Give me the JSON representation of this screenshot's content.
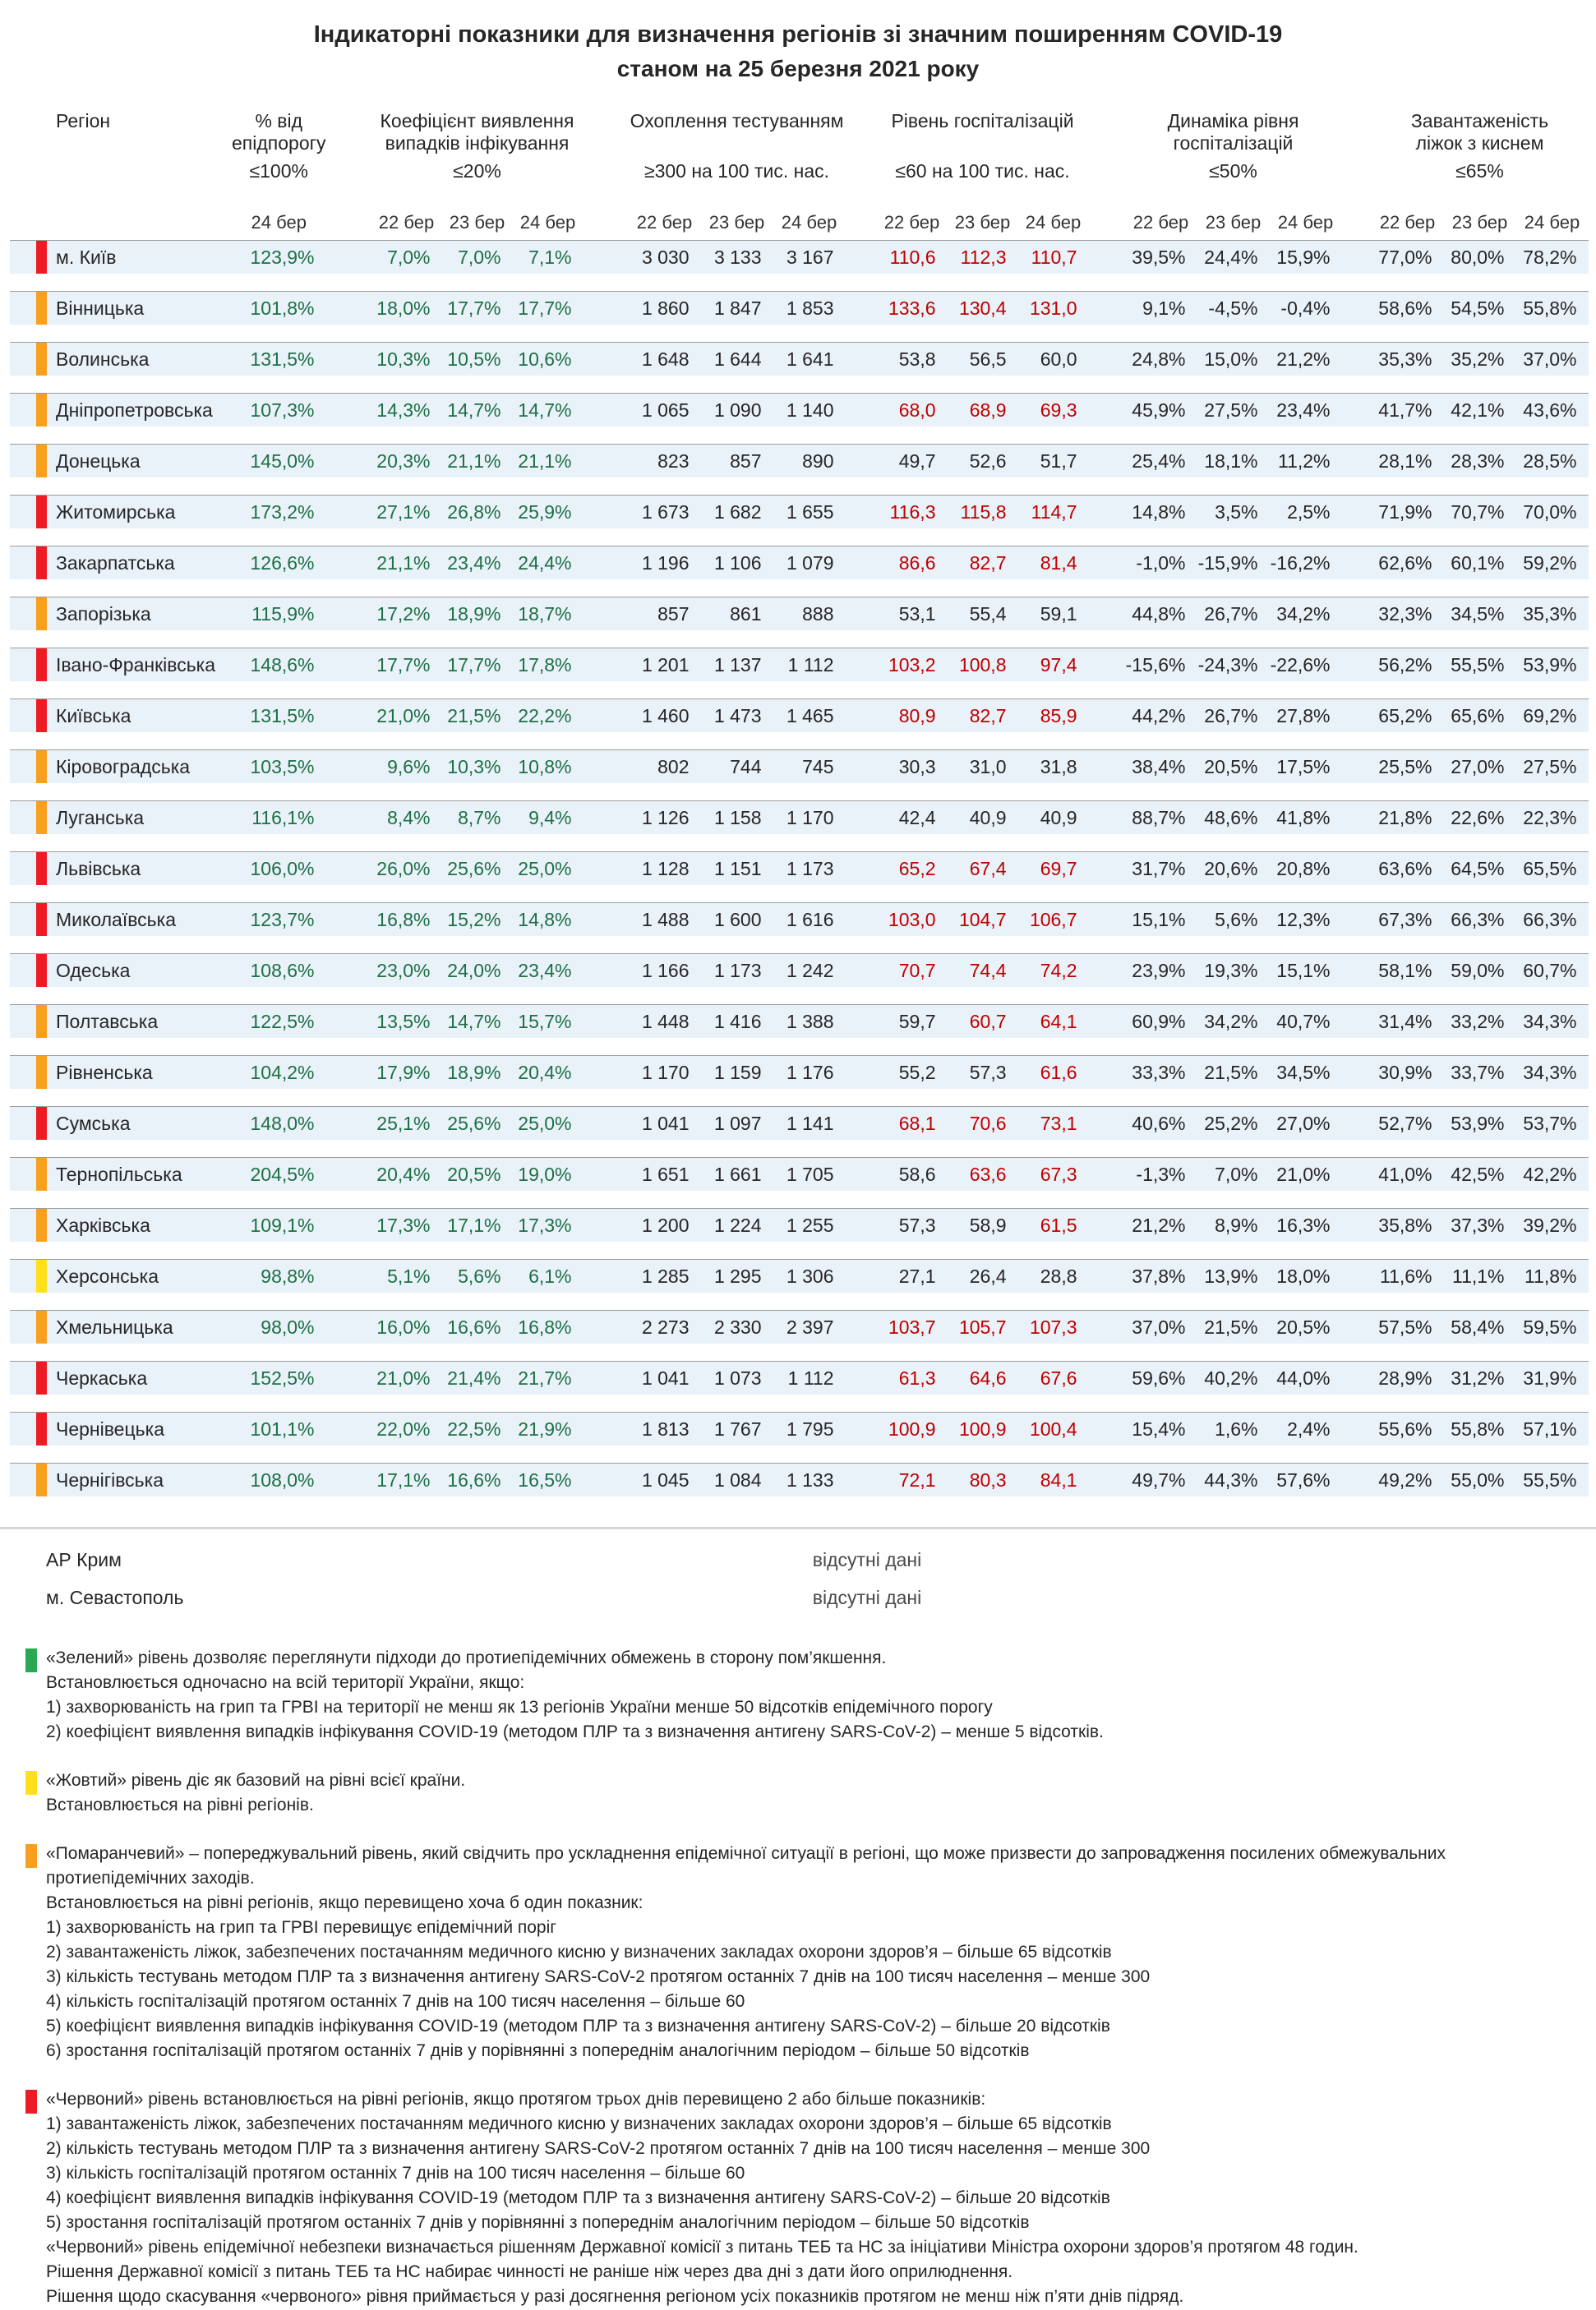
{
  "title": "Індикаторні показники для визначення регіонів зі значним поширенням COVID-19",
  "subtitle": "станом на 25 березня 2021 року",
  "colors": {
    "levels": {
      "red": "#ed1c24",
      "orange": "#f8a01e",
      "yellow": "#ffe01a",
      "green": "#2aa954"
    },
    "green_text": "#1d7044",
    "red_text": "#c00000",
    "band_bg": "#e9f1f9"
  },
  "table": {
    "region_header": "Регіон",
    "hosp_red_threshold": 60,
    "groups": [
      {
        "label1": "% від",
        "label2": "епідпорогу",
        "threshold": "≤100%",
        "dates": [
          "24 бер"
        ]
      },
      {
        "label1": "Коефіцієнт виявлення",
        "label2": "випадків інфікування",
        "threshold": "≤20%",
        "dates": [
          "22 бер",
          "23 бер",
          "24 бер"
        ]
      },
      {
        "label1": "Охоплення тестуванням",
        "label2": "",
        "threshold": "≥300 на 100 тис. нас.",
        "dates": [
          "22 бер",
          "23 бер",
          "24 бер"
        ]
      },
      {
        "label1": "Рівень госпіталізацій",
        "label2": "",
        "threshold": "≤60 на 100 тис. нас.",
        "dates": [
          "22 бер",
          "23 бер",
          "24 бер"
        ]
      },
      {
        "label1": "Динаміка рівня",
        "label2": "госпіталізацій",
        "threshold": "≤50%",
        "dates": [
          "22 бер",
          "23 бер",
          "24 бер"
        ]
      },
      {
        "label1": "Завантаженість",
        "label2": "ліжок з киснем",
        "threshold": "≤65%",
        "dates": [
          "22 бер",
          "23 бер",
          "24 бер"
        ]
      }
    ],
    "rows": [
      {
        "region": "м. Київ",
        "level": "red",
        "epid": "123,9%",
        "coef": [
          "7,0%",
          "7,0%",
          "7,1%"
        ],
        "test": [
          "3 030",
          "3 133",
          "3 167"
        ],
        "hosp": [
          "110,6",
          "112,3",
          "110,7"
        ],
        "dyn": [
          "39,5%",
          "24,4%",
          "15,9%"
        ],
        "oxy": [
          "77,0%",
          "80,0%",
          "78,2%"
        ]
      },
      {
        "region": "Вінницька",
        "level": "orange",
        "epid": "101,8%",
        "coef": [
          "18,0%",
          "17,7%",
          "17,7%"
        ],
        "test": [
          "1 860",
          "1 847",
          "1 853"
        ],
        "hosp": [
          "133,6",
          "130,4",
          "131,0"
        ],
        "dyn": [
          "9,1%",
          "-4,5%",
          "-0,4%"
        ],
        "oxy": [
          "58,6%",
          "54,5%",
          "55,8%"
        ]
      },
      {
        "region": "Волинська",
        "level": "orange",
        "epid": "131,5%",
        "coef": [
          "10,3%",
          "10,5%",
          "10,6%"
        ],
        "test": [
          "1 648",
          "1 644",
          "1 641"
        ],
        "hosp": [
          "53,8",
          "56,5",
          "60,0"
        ],
        "dyn": [
          "24,8%",
          "15,0%",
          "21,2%"
        ],
        "oxy": [
          "35,3%",
          "35,2%",
          "37,0%"
        ]
      },
      {
        "region": "Дніпропетровська",
        "level": "orange",
        "epid": "107,3%",
        "coef": [
          "14,3%",
          "14,7%",
          "14,7%"
        ],
        "test": [
          "1 065",
          "1 090",
          "1 140"
        ],
        "hosp": [
          "68,0",
          "68,9",
          "69,3"
        ],
        "dyn": [
          "45,9%",
          "27,5%",
          "23,4%"
        ],
        "oxy": [
          "41,7%",
          "42,1%",
          "43,6%"
        ]
      },
      {
        "region": "Донецька",
        "level": "orange",
        "epid": "145,0%",
        "coef": [
          "20,3%",
          "21,1%",
          "21,1%"
        ],
        "test": [
          "823",
          "857",
          "890"
        ],
        "hosp": [
          "49,7",
          "52,6",
          "51,7"
        ],
        "dyn": [
          "25,4%",
          "18,1%",
          "11,2%"
        ],
        "oxy": [
          "28,1%",
          "28,3%",
          "28,5%"
        ]
      },
      {
        "region": "Житомирська",
        "level": "red",
        "epid": "173,2%",
        "coef": [
          "27,1%",
          "26,8%",
          "25,9%"
        ],
        "test": [
          "1 673",
          "1 682",
          "1 655"
        ],
        "hosp": [
          "116,3",
          "115,8",
          "114,7"
        ],
        "dyn": [
          "14,8%",
          "3,5%",
          "2,5%"
        ],
        "oxy": [
          "71,9%",
          "70,7%",
          "70,0%"
        ]
      },
      {
        "region": "Закарпатська",
        "level": "red",
        "epid": "126,6%",
        "coef": [
          "21,1%",
          "23,4%",
          "24,4%"
        ],
        "test": [
          "1 196",
          "1 106",
          "1 079"
        ],
        "hosp": [
          "86,6",
          "82,7",
          "81,4"
        ],
        "dyn": [
          "-1,0%",
          "-15,9%",
          "-16,2%"
        ],
        "oxy": [
          "62,6%",
          "60,1%",
          "59,2%"
        ]
      },
      {
        "region": "Запорізька",
        "level": "orange",
        "epid": "115,9%",
        "coef": [
          "17,2%",
          "18,9%",
          "18,7%"
        ],
        "test": [
          "857",
          "861",
          "888"
        ],
        "hosp": [
          "53,1",
          "55,4",
          "59,1"
        ],
        "dyn": [
          "44,8%",
          "26,7%",
          "34,2%"
        ],
        "oxy": [
          "32,3%",
          "34,5%",
          "35,3%"
        ]
      },
      {
        "region": "Івано-Франківська",
        "level": "red",
        "epid": "148,6%",
        "coef": [
          "17,7%",
          "17,7%",
          "17,8%"
        ],
        "test": [
          "1 201",
          "1 137",
          "1 112"
        ],
        "hosp": [
          "103,2",
          "100,8",
          "97,4"
        ],
        "dyn": [
          "-15,6%",
          "-24,3%",
          "-22,6%"
        ],
        "oxy": [
          "56,2%",
          "55,5%",
          "53,9%"
        ]
      },
      {
        "region": "Київська",
        "level": "red",
        "epid": "131,5%",
        "coef": [
          "21,0%",
          "21,5%",
          "22,2%"
        ],
        "test": [
          "1 460",
          "1 473",
          "1 465"
        ],
        "hosp": [
          "80,9",
          "82,7",
          "85,9"
        ],
        "dyn": [
          "44,2%",
          "26,7%",
          "27,8%"
        ],
        "oxy": [
          "65,2%",
          "65,6%",
          "69,2%"
        ]
      },
      {
        "region": "Кіровоградська",
        "level": "orange",
        "epid": "103,5%",
        "coef": [
          "9,6%",
          "10,3%",
          "10,8%"
        ],
        "test": [
          "802",
          "744",
          "745"
        ],
        "hosp": [
          "30,3",
          "31,0",
          "31,8"
        ],
        "dyn": [
          "38,4%",
          "20,5%",
          "17,5%"
        ],
        "oxy": [
          "25,5%",
          "27,0%",
          "27,5%"
        ]
      },
      {
        "region": "Луганська",
        "level": "orange",
        "epid": "116,1%",
        "coef": [
          "8,4%",
          "8,7%",
          "9,4%"
        ],
        "test": [
          "1 126",
          "1 158",
          "1 170"
        ],
        "hosp": [
          "42,4",
          "40,9",
          "40,9"
        ],
        "dyn": [
          "88,7%",
          "48,6%",
          "41,8%"
        ],
        "oxy": [
          "21,8%",
          "22,6%",
          "22,3%"
        ]
      },
      {
        "region": "Львівська",
        "level": "red",
        "epid": "106,0%",
        "coef": [
          "26,0%",
          "25,6%",
          "25,0%"
        ],
        "test": [
          "1 128",
          "1 151",
          "1 173"
        ],
        "hosp": [
          "65,2",
          "67,4",
          "69,7"
        ],
        "dyn": [
          "31,7%",
          "20,6%",
          "20,8%"
        ],
        "oxy": [
          "63,6%",
          "64,5%",
          "65,5%"
        ]
      },
      {
        "region": "Миколаївська",
        "level": "red",
        "epid": "123,7%",
        "coef": [
          "16,8%",
          "15,2%",
          "14,8%"
        ],
        "test": [
          "1 488",
          "1 600",
          "1 616"
        ],
        "hosp": [
          "103,0",
          "104,7",
          "106,7"
        ],
        "dyn": [
          "15,1%",
          "5,6%",
          "12,3%"
        ],
        "oxy": [
          "67,3%",
          "66,3%",
          "66,3%"
        ]
      },
      {
        "region": "Одеська",
        "level": "red",
        "epid": "108,6%",
        "coef": [
          "23,0%",
          "24,0%",
          "23,4%"
        ],
        "test": [
          "1 166",
          "1 173",
          "1 242"
        ],
        "hosp": [
          "70,7",
          "74,4",
          "74,2"
        ],
        "dyn": [
          "23,9%",
          "19,3%",
          "15,1%"
        ],
        "oxy": [
          "58,1%",
          "59,0%",
          "60,7%"
        ]
      },
      {
        "region": "Полтавська",
        "level": "orange",
        "epid": "122,5%",
        "coef": [
          "13,5%",
          "14,7%",
          "15,7%"
        ],
        "test": [
          "1 448",
          "1 416",
          "1 388"
        ],
        "hosp": [
          "59,7",
          "60,7",
          "64,1"
        ],
        "dyn": [
          "60,9%",
          "34,2%",
          "40,7%"
        ],
        "oxy": [
          "31,4%",
          "33,2%",
          "34,3%"
        ]
      },
      {
        "region": "Рівненська",
        "level": "orange",
        "epid": "104,2%",
        "coef": [
          "17,9%",
          "18,9%",
          "20,4%"
        ],
        "test": [
          "1 170",
          "1 159",
          "1 176"
        ],
        "hosp": [
          "55,2",
          "57,3",
          "61,6"
        ],
        "dyn": [
          "33,3%",
          "21,5%",
          "34,5%"
        ],
        "oxy": [
          "30,9%",
          "33,7%",
          "34,3%"
        ]
      },
      {
        "region": "Сумська",
        "level": "red",
        "epid": "148,0%",
        "coef": [
          "25,1%",
          "25,6%",
          "25,0%"
        ],
        "test": [
          "1 041",
          "1 097",
          "1 141"
        ],
        "hosp": [
          "68,1",
          "70,6",
          "73,1"
        ],
        "dyn": [
          "40,6%",
          "25,2%",
          "27,0%"
        ],
        "oxy": [
          "52,7%",
          "53,9%",
          "53,7%"
        ]
      },
      {
        "region": "Тернопільська",
        "level": "orange",
        "epid": "204,5%",
        "coef": [
          "20,4%",
          "20,5%",
          "19,0%"
        ],
        "test": [
          "1 651",
          "1 661",
          "1 705"
        ],
        "hosp": [
          "58,6",
          "63,6",
          "67,3"
        ],
        "dyn": [
          "-1,3%",
          "7,0%",
          "21,0%"
        ],
        "oxy": [
          "41,0%",
          "42,5%",
          "42,2%"
        ]
      },
      {
        "region": "Харківська",
        "level": "orange",
        "epid": "109,1%",
        "coef": [
          "17,3%",
          "17,1%",
          "17,3%"
        ],
        "test": [
          "1 200",
          "1 224",
          "1 255"
        ],
        "hosp": [
          "57,3",
          "58,9",
          "61,5"
        ],
        "dyn": [
          "21,2%",
          "8,9%",
          "16,3%"
        ],
        "oxy": [
          "35,8%",
          "37,3%",
          "39,2%"
        ]
      },
      {
        "region": "Херсонська",
        "level": "yellow",
        "epid": "98,8%",
        "coef": [
          "5,1%",
          "5,6%",
          "6,1%"
        ],
        "test": [
          "1 285",
          "1 295",
          "1 306"
        ],
        "hosp": [
          "27,1",
          "26,4",
          "28,8"
        ],
        "dyn": [
          "37,8%",
          "13,9%",
          "18,0%"
        ],
        "oxy": [
          "11,6%",
          "11,1%",
          "11,8%"
        ]
      },
      {
        "region": "Хмельницька",
        "level": "orange",
        "epid": "98,0%",
        "coef": [
          "16,0%",
          "16,6%",
          "16,8%"
        ],
        "test": [
          "2 273",
          "2 330",
          "2 397"
        ],
        "hosp": [
          "103,7",
          "105,7",
          "107,3"
        ],
        "dyn": [
          "37,0%",
          "21,5%",
          "20,5%"
        ],
        "oxy": [
          "57,5%",
          "58,4%",
          "59,5%"
        ]
      },
      {
        "region": "Черкаська",
        "level": "red",
        "epid": "152,5%",
        "coef": [
          "21,0%",
          "21,4%",
          "21,7%"
        ],
        "test": [
          "1 041",
          "1 073",
          "1 112"
        ],
        "hosp": [
          "61,3",
          "64,6",
          "67,6"
        ],
        "dyn": [
          "59,6%",
          "40,2%",
          "44,0%"
        ],
        "oxy": [
          "28,9%",
          "31,2%",
          "31,9%"
        ]
      },
      {
        "region": "Чернівецька",
        "level": "red",
        "epid": "101,1%",
        "coef": [
          "22,0%",
          "22,5%",
          "21,9%"
        ],
        "test": [
          "1 813",
          "1 767",
          "1 795"
        ],
        "hosp": [
          "100,9",
          "100,9",
          "100,4"
        ],
        "dyn": [
          "15,4%",
          "1,6%",
          "2,4%"
        ],
        "oxy": [
          "55,6%",
          "55,8%",
          "57,1%"
        ]
      },
      {
        "region": "Чернігівська",
        "level": "orange",
        "epid": "108,0%",
        "coef": [
          "17,1%",
          "16,6%",
          "16,5%"
        ],
        "test": [
          "1 045",
          "1 084",
          "1 133"
        ],
        "hosp": [
          "72,1",
          "80,3",
          "84,1"
        ],
        "dyn": [
          "49,7%",
          "44,3%",
          "57,6%"
        ],
        "oxy": [
          "49,2%",
          "55,0%",
          "55,5%"
        ]
      }
    ],
    "no_data_rows": [
      {
        "region": "АР Крим",
        "note": "відсутні дані"
      },
      {
        "region": "м. Севастополь",
        "note": "відсутні дані"
      }
    ]
  },
  "legend": {
    "blocks": [
      {
        "level": "green",
        "color": "#2aa954",
        "lines": [
          "«Зелений» рівень дозволяє переглянути підходи до протиепідемічних обмежень в сторону пом’якшення.",
          "Встановлюється одночасно на всій території України, якщо:",
          "1) захворюваність на грип та ГРВІ на території не менш як 13 регіонів України менше 50 відсотків епідемічного порогу",
          "2) коефіцієнт виявлення випадків інфікування COVID-19 (методом ПЛР та з визначення антигену SARS-CoV-2) – менше 5 відсотків."
        ]
      },
      {
        "level": "yellow",
        "color": "#ffe01a",
        "lines": [
          "«Жовтий» рівень діє як базовий на рівні всієї країни.",
          "Встановлюється на рівні регіонів."
        ]
      },
      {
        "level": "orange",
        "color": "#f8a01e",
        "lines": [
          "«Помаранчевий» – попереджувальний рівень, який свідчить про ускладнення епідемічної ситуації в регіоні, що може призвести до запровадження посилених обмежувальних",
          "протиепідемічних заходів.",
          "Встановлюється на рівні регіонів, якщо перевищено хоча б один показник:",
          "1) захворюваність на грип та ГРВІ перевищує епідемічний поріг",
          "2) завантаженість ліжок, забезпечених постачанням медичного кисню у визначених закладах охорони здоров’я – більше 65 відсотків",
          "3) кількість тестувань методом ПЛР та з визначення антигену SARS-CoV-2 протягом останніх 7 днів на 100 тисяч населення – менше 300",
          "4) кількість госпіталізацій протягом останніх 7 днів на 100 тисяч населення – більше 60",
          "5) коефіцієнт виявлення випадків інфікування COVID-19 (методом ПЛР та з визначення антигену SARS-CoV-2) – більше 20 відсотків",
          "6) зростання госпіталізацій протягом останніх 7 днів у порівнянні з попереднім аналогічним періодом – більше 50 відсотків"
        ]
      },
      {
        "level": "red",
        "color": "#ed1c24",
        "lines": [
          "«Червоний» рівень встановлюється на рівні регіонів, якщо протягом трьох днів перевищено 2 або більше показників:",
          "1) завантаженість ліжок, забезпечених постачанням медичного кисню у визначених закладах охорони здоров’я – більше 65 відсотків",
          "2) кількість тестувань методом ПЛР та з визначення антигену SARS-CoV-2 протягом останніх 7 днів на 100 тисяч населення – менше 300",
          "3) кількість госпіталізацій протягом останніх 7 днів на 100 тисяч населення – більше 60",
          "4) коефіцієнт виявлення випадків інфікування COVID-19 (методом ПЛР та з визначення антигену SARS-CoV-2) – більше 20 відсотків",
          "5) зростання госпіталізацій протягом останніх 7 днів у порівнянні з попереднім аналогічним періодом – більше 50 відсотків",
          "«Червоний» рівень епідемічної небезпеки визначається рішенням Державної комісії з питань ТЕБ та НС за ініціативи Міністра охорони здоров’я протягом 48 годин.",
          "Рішення Державної комісії з питань ТЕБ та НС набирає чинності не раніше ніж через два дні з дати його оприлюднення.",
          "Рішення щодо скасування «червоного» рівня приймається у разі досягнення регіоном усіх показників протягом не менш ніж п’яти днів підряд."
        ]
      }
    ]
  }
}
